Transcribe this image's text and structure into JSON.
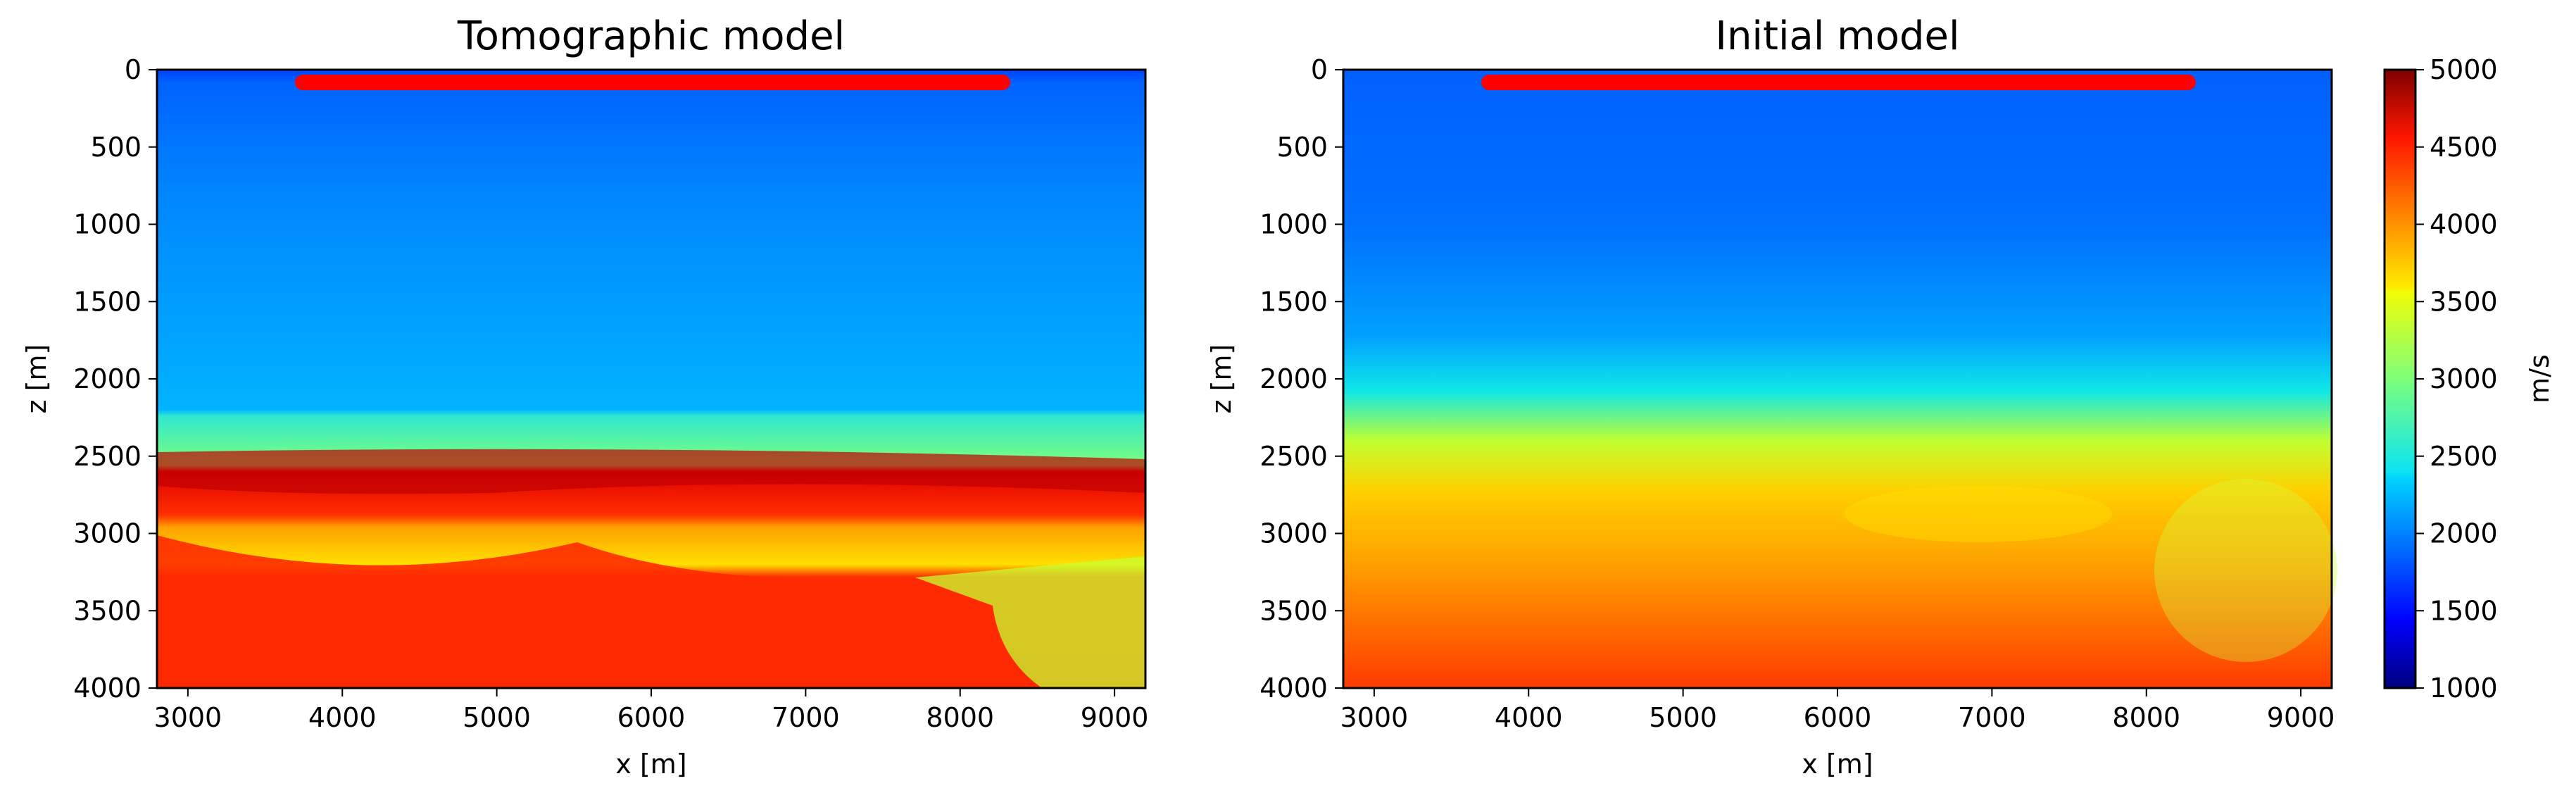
{
  "chart_data": [
    {
      "type": "heatmap",
      "title": "Tomographic model",
      "xlabel": "x [m]",
      "ylabel": "z [m]",
      "xlim": [
        2800,
        9200
      ],
      "ylim": [
        4000,
        0
      ],
      "xticks": [
        "3000",
        "4000",
        "5000",
        "6000",
        "7000",
        "8000",
        "9000"
      ],
      "yticks": [
        "0",
        "500",
        "1000",
        "1500",
        "2000",
        "2500",
        "3000",
        "3500",
        "4000"
      ],
      "acquisition_line": {
        "x_start": 3750,
        "x_end": 8250,
        "z": 80,
        "color": "#ff0000"
      },
      "layers": [
        {
          "z_top": 0,
          "z_bottom": 80,
          "velocity": 1800
        },
        {
          "z_top": 80,
          "z_bottom": 2250,
          "velocity": 2200
        },
        {
          "z_top": 2250,
          "z_bottom": 2600,
          "velocity": 3000
        },
        {
          "z_top": 2600,
          "z_bottom": 2900,
          "velocity": 4700
        },
        {
          "z_top": 2900,
          "z_bottom": 3300,
          "velocity": 3900
        },
        {
          "z_top": 3300,
          "z_bottom": 4000,
          "velocity": 4300
        }
      ]
    },
    {
      "type": "heatmap",
      "title": "Initial model",
      "xlabel": "x [m]",
      "ylabel": "z [m]",
      "xlim": [
        2800,
        9200
      ],
      "ylim": [
        4000,
        0
      ],
      "xticks": [
        "3000",
        "4000",
        "5000",
        "6000",
        "7000",
        "8000",
        "9000"
      ],
      "yticks": [
        "0",
        "500",
        "1000",
        "1500",
        "2000",
        "2500",
        "3000",
        "3500",
        "4000"
      ],
      "acquisition_line": {
        "x_start": 3750,
        "x_end": 8250,
        "z": 80,
        "color": "#ff0000"
      },
      "velocity_profile": [
        {
          "z": 0,
          "velocity": 1900
        },
        {
          "z": 1000,
          "velocity": 2100
        },
        {
          "z": 1800,
          "velocity": 2400
        },
        {
          "z": 2200,
          "velocity": 3000
        },
        {
          "z": 2700,
          "velocity": 3700
        },
        {
          "z": 3200,
          "velocity": 4000
        },
        {
          "z": 4000,
          "velocity": 4400
        }
      ]
    }
  ],
  "colorbar": {
    "label": "m/s",
    "min": 1000,
    "max": 5000,
    "colormap": "jet",
    "ticks": [
      "1000",
      "1500",
      "2000",
      "2500",
      "3000",
      "3500",
      "4000",
      "4500",
      "5000"
    ]
  }
}
